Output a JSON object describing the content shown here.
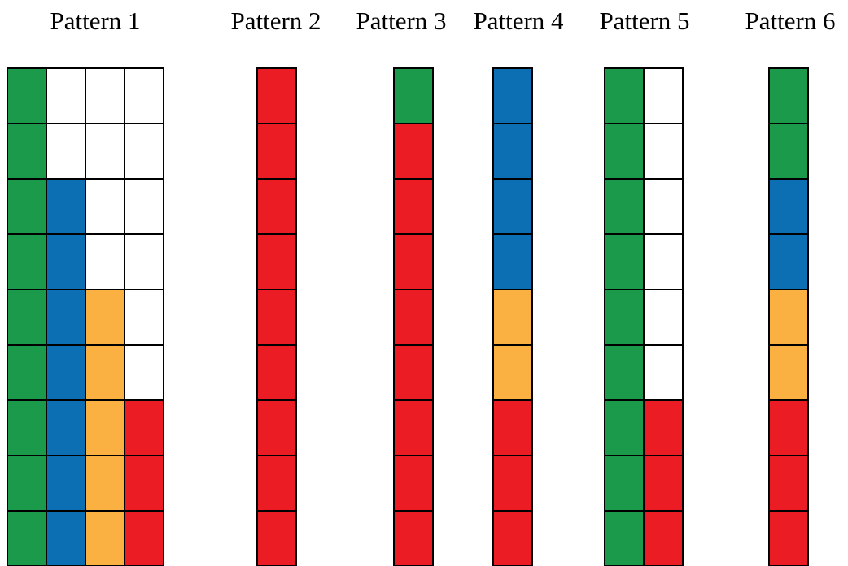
{
  "colors": {
    "green": "#1a9a4a",
    "blue": "#0d6fb3",
    "orange": "#fbb141",
    "red": "#ec1c24",
    "empty": "#ffffff",
    "outline": "#000000"
  },
  "patterns": [
    {
      "title": "Pattern 1",
      "columns": [
        [
          "green",
          "green",
          "green",
          "green",
          "green",
          "green",
          "green",
          "green",
          "green"
        ],
        [
          "empty",
          "empty",
          "blue",
          "blue",
          "blue",
          "blue",
          "blue",
          "blue",
          "blue"
        ],
        [
          "empty",
          "empty",
          "empty",
          "empty",
          "orange",
          "orange",
          "orange",
          "orange",
          "orange"
        ],
        [
          "empty",
          "empty",
          "empty",
          "empty",
          "empty",
          "empty",
          "red",
          "red",
          "red"
        ]
      ]
    },
    {
      "title": "Pattern 2",
      "columns": [
        [
          "red",
          "red",
          "red",
          "red",
          "red",
          "red",
          "red",
          "red",
          "red"
        ]
      ]
    },
    {
      "title": "Pattern 3",
      "columns": [
        [
          "green",
          "red",
          "red",
          "red",
          "red",
          "red",
          "red",
          "red",
          "red"
        ]
      ]
    },
    {
      "title": "Pattern 4",
      "columns": [
        [
          "blue",
          "blue",
          "blue",
          "blue",
          "orange",
          "orange",
          "red",
          "red",
          "red"
        ]
      ]
    },
    {
      "title": "Pattern 5",
      "columns": [
        [
          "green",
          "green",
          "green",
          "green",
          "green",
          "green",
          "green",
          "green",
          "green"
        ],
        [
          "empty",
          "empty",
          "empty",
          "empty",
          "empty",
          "empty",
          "red",
          "red",
          "red"
        ]
      ]
    },
    {
      "title": "Pattern 6",
      "columns": [
        [
          "green",
          "green",
          "blue",
          "blue",
          "orange",
          "orange",
          "red",
          "red",
          "red"
        ]
      ]
    }
  ]
}
